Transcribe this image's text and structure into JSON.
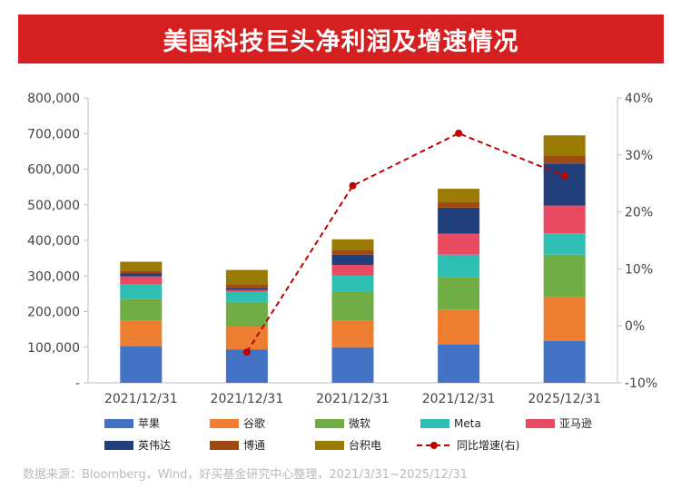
{
  "title": "美国科技巨头净利润及增速情况",
  "source": "数据来源：Bloomberg，Wind，好买基金研究中心整理，2021/3/31~2025/12/31",
  "chart_data": {
    "type": "bar",
    "stacked": true,
    "categories": [
      "2021/12/31",
      "2021/12/31",
      "2021/12/31",
      "2021/12/31",
      "2025/12/31"
    ],
    "y_left": {
      "min": 0,
      "max": 800000,
      "step": 100000,
      "ticks": [
        "-",
        "100,000",
        "200,000",
        "300,000",
        "400,000",
        "500,000",
        "600,000",
        "700,000",
        "800,000"
      ]
    },
    "y_right": {
      "min": -10,
      "max": 40,
      "step": 10,
      "ticks": [
        "-10%",
        "0%",
        "10%",
        "20%",
        "30%",
        "40%"
      ]
    },
    "series": [
      {
        "name": "苹果",
        "color": "#4472c4",
        "values": [
          103000,
          94000,
          100000,
          107000,
          118000
        ]
      },
      {
        "name": "谷歌",
        "color": "#ed7d31",
        "values": [
          72000,
          64000,
          75000,
          99000,
          122000
        ]
      },
      {
        "name": "微软",
        "color": "#70ad47",
        "values": [
          61000,
          69000,
          82000,
          90000,
          120000
        ]
      },
      {
        "name": "Meta",
        "color": "#2fbfb2",
        "values": [
          40000,
          29000,
          44000,
          64000,
          60000
        ]
      },
      {
        "name": "亚马逊",
        "color": "#e84a62",
        "values": [
          23000,
          5000,
          30000,
          59000,
          78000
        ]
      },
      {
        "name": "英伟达",
        "color": "#1f3e7a",
        "values": [
          9000,
          5000,
          29000,
          73000,
          118000
        ]
      },
      {
        "name": "博通",
        "color": "#9e4a12",
        "values": [
          7000,
          11000,
          14000,
          16000,
          23000
        ]
      },
      {
        "name": "台积电",
        "color": "#9a7b04",
        "values": [
          25000,
          40000,
          29000,
          37000,
          56000
        ]
      }
    ],
    "line": {
      "name": "同比增速(右)",
      "color": "#c00000",
      "values": [
        null,
        -4.6,
        24.6,
        33.8,
        26.3
      ]
    },
    "legend_position": "bottom"
  }
}
